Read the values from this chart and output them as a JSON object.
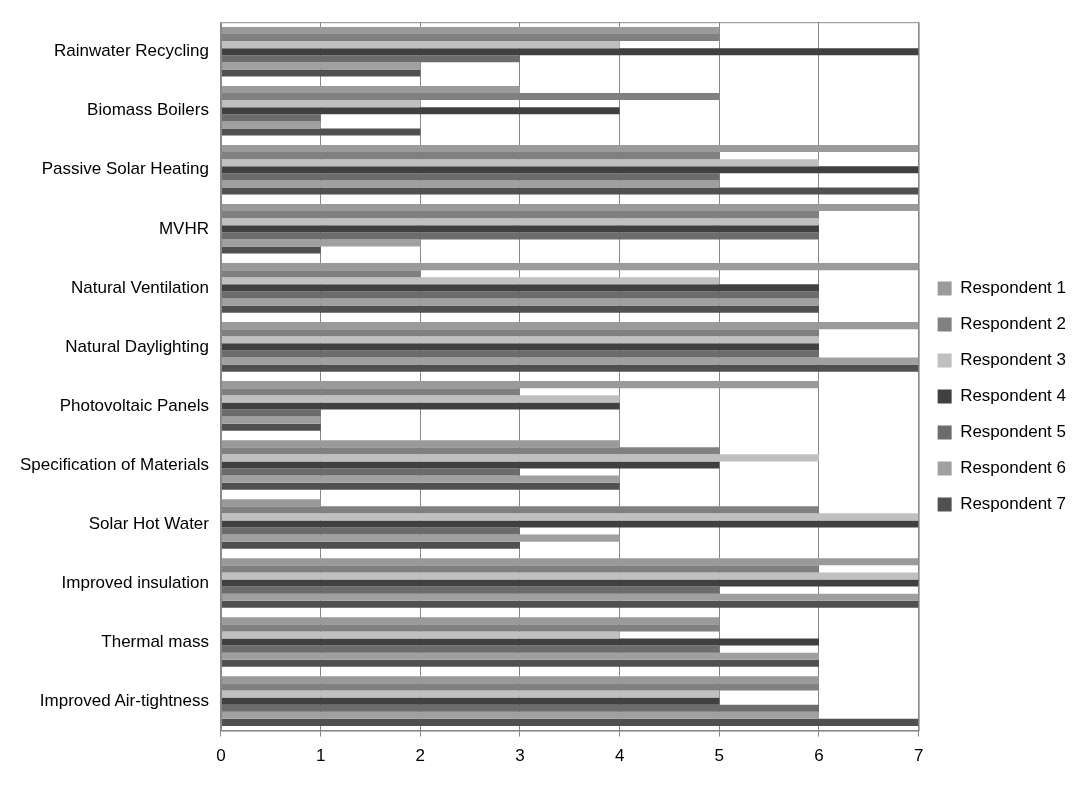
{
  "chart_data": {
    "type": "bar",
    "orientation": "horizontal",
    "categories": [
      "Rainwater Recycling",
      "Biomass Boilers",
      "Passive Solar Heating",
      "MVHR",
      "Natural Ventilation",
      "Natural Daylighting",
      "Photovoltaic Panels",
      "Specification of Materials",
      "Solar Hot Water",
      "Improved insulation",
      "Thermal mass",
      "Improved Air-tightness"
    ],
    "series": [
      {
        "name": "Respondent 1",
        "color": "#9a9a9a",
        "values": [
          5,
          3,
          7,
          7,
          7,
          7,
          6,
          4,
          1,
          7,
          5,
          6
        ]
      },
      {
        "name": "Respondent 2",
        "color": "#808080",
        "values": [
          5,
          5,
          5,
          6,
          2,
          6,
          3,
          5,
          6,
          6,
          5,
          6
        ]
      },
      {
        "name": "Respondent 3",
        "color": "#c0c0c0",
        "values": [
          4,
          2,
          6,
          6,
          5,
          6,
          4,
          6,
          7,
          7,
          4,
          5
        ]
      },
      {
        "name": "Respondent 4",
        "color": "#404040",
        "values": [
          7,
          4,
          7,
          6,
          6,
          6,
          4,
          5,
          7,
          7,
          6,
          5
        ]
      },
      {
        "name": "Respondent 5",
        "color": "#6c6c6c",
        "values": [
          3,
          1,
          5,
          6,
          6,
          6,
          1,
          3,
          3,
          5,
          5,
          6
        ]
      },
      {
        "name": "Respondent 6",
        "color": "#a0a0a0",
        "values": [
          2,
          1,
          5,
          2,
          6,
          7,
          1,
          4,
          4,
          7,
          6,
          6
        ]
      },
      {
        "name": "Respondent 7",
        "color": "#505050",
        "values": [
          2,
          2,
          7,
          1,
          6,
          7,
          1,
          4,
          3,
          7,
          6,
          7
        ]
      }
    ],
    "xlim": [
      0,
      7
    ],
    "xticks": [
      0,
      1,
      2,
      3,
      4,
      5,
      6,
      7
    ],
    "grid": "x",
    "legend": "right"
  }
}
